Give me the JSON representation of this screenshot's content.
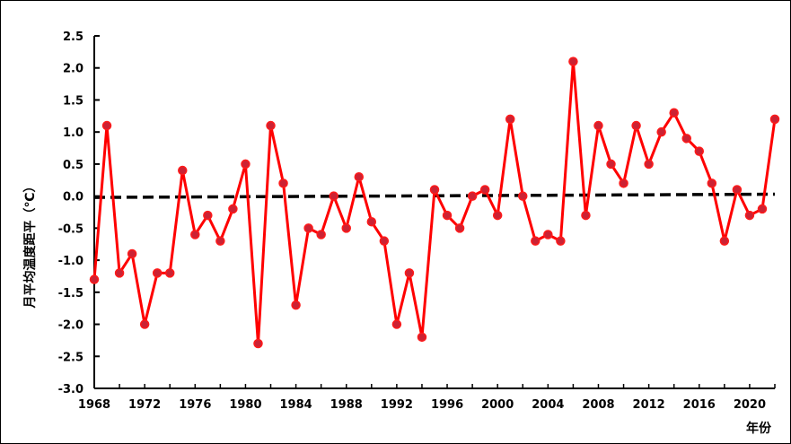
{
  "chart_data": {
    "type": "line",
    "title": "",
    "xlabel": "年份",
    "ylabel": "月平均温度距平（℃）",
    "xlim": [
      1968,
      2022
    ],
    "ylim": [
      -3.0,
      2.5
    ],
    "ytick_step": 0.5,
    "xticks": [
      1968,
      1972,
      1976,
      1980,
      1984,
      1988,
      1992,
      1996,
      2000,
      2004,
      2008,
      2012,
      2016,
      2020
    ],
    "ytick_labels": [
      "2.5",
      "2.0",
      "1.5",
      "1.0",
      "0.5",
      "0.0",
      "-0.5",
      "-1.0",
      "-1.5",
      "-2.0",
      "-2.5",
      "-3.0"
    ],
    "grid": false,
    "legend": "none",
    "series": [
      {
        "style": "solid",
        "line_color": "#ff0000",
        "marker_color": "#cc2233",
        "x": [
          1968,
          1969,
          1970,
          1971,
          1972,
          1973,
          1974,
          1975,
          1976,
          1977,
          1978,
          1979,
          1980,
          1981,
          1982,
          1983,
          1984,
          1985,
          1986,
          1987,
          1988,
          1989,
          1990,
          1991,
          1992,
          1993,
          1994,
          1995,
          1996,
          1997,
          1998,
          1999,
          2000,
          2001,
          2002,
          2003,
          2004,
          2005,
          2006,
          2007,
          2008,
          2009,
          2010,
          2011,
          2012,
          2013,
          2014,
          2015,
          2016,
          2017,
          2018,
          2019,
          2020,
          2021,
          2022
        ],
        "values": [
          -1.3,
          1.1,
          -1.2,
          -0.9,
          -2.0,
          -1.2,
          -1.2,
          0.4,
          -0.6,
          -0.3,
          -0.7,
          -0.2,
          0.5,
          -2.3,
          1.1,
          0.2,
          -1.7,
          -0.5,
          -0.6,
          0.0,
          -0.5,
          0.3,
          -0.4,
          -0.7,
          -2.0,
          -1.2,
          -2.2,
          0.1,
          -0.3,
          -0.5,
          0.0,
          0.1,
          -0.3,
          1.2,
          0.0,
          -0.7,
          -0.6,
          -0.7,
          2.1,
          -0.3,
          1.1,
          0.5,
          0.2,
          1.1,
          0.5,
          1.0,
          1.3,
          0.9,
          0.7,
          0.2,
          -0.7,
          0.1,
          -0.3,
          -0.2,
          1.2
        ]
      },
      {
        "style": "dashed",
        "line_color": "#000000",
        "x": [
          1968,
          2022
        ],
        "values": [
          -0.02,
          0.03
        ]
      }
    ]
  }
}
